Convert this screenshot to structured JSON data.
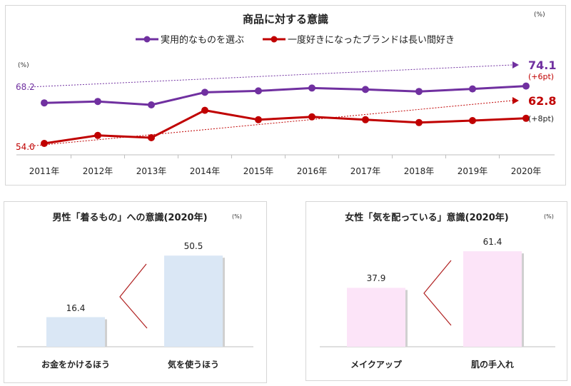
{
  "chart_data": [
    {
      "type": "line",
      "title": "商品に対する意識",
      "unit_label": "(%)",
      "unit_label_left": "(%)",
      "categories": [
        "2011年",
        "2012年",
        "2013年",
        "2014年",
        "2015年",
        "2016年",
        "2017年",
        "2018年",
        "2019年",
        "2020年"
      ],
      "series": [
        {
          "name": "実用的なものを選ぶ",
          "color": "#7030a0",
          "values": [
            68.2,
            68.7,
            67.5,
            71.9,
            72.4,
            73.4,
            72.9,
            72.2,
            73.1,
            74.1
          ],
          "start_label": "68.2",
          "end_label": "74.1",
          "change_label": "(+6pt)"
        },
        {
          "name": "一度好きになったブランドは長い間好き",
          "color": "#c00000",
          "values": [
            54.0,
            56.8,
            56.0,
            65.6,
            62.3,
            63.3,
            62.3,
            61.3,
            62.0,
            62.8
          ],
          "start_label": "54.0",
          "end_label": "62.8",
          "change_label": "(+8pt)"
        }
      ],
      "legend": "top",
      "grid": false
    },
    {
      "type": "bar",
      "title": "男性「着るもの」への意識(2020年)",
      "unit_label": "(%)",
      "categories": [
        "お金をかけるほう",
        "気を使うほう"
      ],
      "values": [
        16.4,
        50.5
      ],
      "value_labels": [
        "16.4",
        "50.5"
      ],
      "color": "#dae7f5"
    },
    {
      "type": "bar",
      "title": "女性「気を配っている」意識(2020年)",
      "unit_label": "(%)",
      "categories": [
        "メイクアップ",
        "肌の手入れ"
      ],
      "values": [
        37.9,
        61.4
      ],
      "value_labels": [
        "37.9",
        "61.4"
      ],
      "color": "#fce4f8"
    }
  ]
}
